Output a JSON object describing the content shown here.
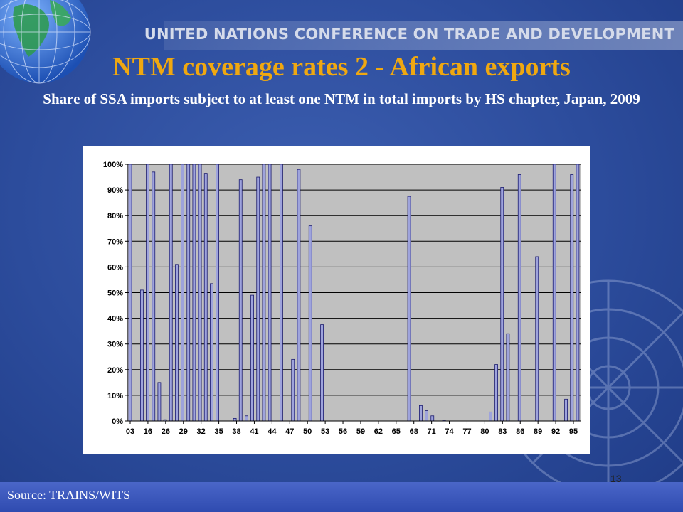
{
  "header": {
    "org_name": "UNITED NATIONS CONFERENCE ON TRADE AND DEVELOPMENT"
  },
  "slide": {
    "title": "NTM coverage rates 2 - African exports",
    "subtitle": "Share of SSA imports subject to at least one NTM in total imports by HS chapter, Japan, 2009",
    "source": "Source: TRAINS/WITS",
    "page_number": "13"
  },
  "colors": {
    "bar_fill": "#9ea3dc",
    "bar_stroke": "#1a1a6e",
    "plot_bg": "#c0c0c0",
    "title": "#f0a810"
  },
  "chart_data": {
    "type": "bar",
    "title": "",
    "xlabel": "",
    "ylabel": "",
    "ylim": [
      0,
      100
    ],
    "grid": true,
    "legend": "none",
    "y_tick_labels": [
      "0%",
      "10%",
      "20%",
      "30%",
      "40%",
      "50%",
      "60%",
      "70%",
      "80%",
      "90%",
      "100%"
    ],
    "x_tick_labels": [
      "03",
      "16",
      "26",
      "29",
      "32",
      "35",
      "38",
      "41",
      "44",
      "47",
      "50",
      "53",
      "56",
      "59",
      "62",
      "65",
      "68",
      "71",
      "74",
      "77",
      "80",
      "83",
      "86",
      "89",
      "92",
      "95"
    ],
    "values": [
      100,
      0,
      51,
      100,
      97,
      15,
      0.5,
      100,
      61,
      100,
      100,
      100,
      100,
      96.5,
      53.5,
      100,
      0,
      0,
      1,
      94,
      2,
      49,
      95,
      100,
      100,
      0,
      100,
      0,
      24,
      98,
      0,
      76,
      0,
      37.5,
      0,
      0,
      0,
      0,
      0,
      0,
      0,
      0,
      0,
      0,
      0,
      0,
      0,
      0,
      87.5,
      0,
      6,
      4,
      2,
      0,
      0.3,
      0,
      0,
      0,
      0,
      0,
      0,
      0,
      3.5,
      22,
      91,
      34,
      0,
      96,
      0,
      0,
      64,
      0,
      0,
      100,
      0,
      8.5,
      96,
      100
    ]
  }
}
